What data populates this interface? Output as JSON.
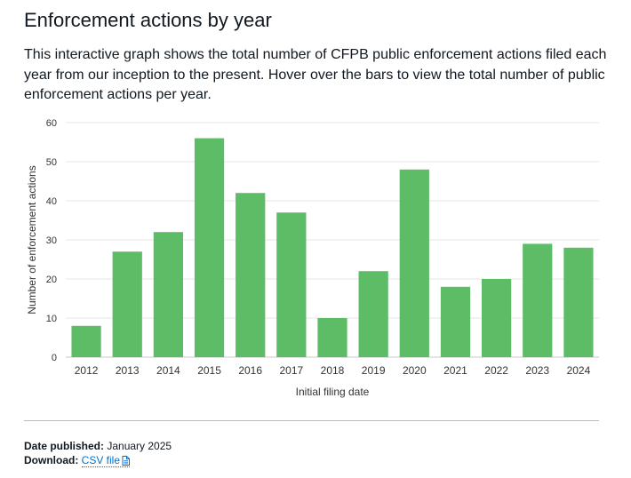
{
  "page": {
    "title": "Enforcement actions by year",
    "description": "This interactive graph shows the total number of CFPB public enforcement actions filed each year from our inception to the present. Hover over the bars to view the total number of public enforcement actions per year."
  },
  "meta": {
    "date_label": "Date published:",
    "date_value": "January 2025",
    "download_label": "Download:",
    "download_link": "CSV file",
    "download_icon": "document-icon"
  },
  "colors": {
    "bar": "#5cbd66",
    "grid": "#e6e6e6",
    "axis_text": "#333333",
    "link": "#0072ce"
  },
  "chart_data": {
    "type": "bar",
    "title": "",
    "xlabel": "Initial filing date",
    "ylabel": "Number of enforcement actions",
    "categories": [
      "2012",
      "2013",
      "2014",
      "2015",
      "2016",
      "2017",
      "2018",
      "2019",
      "2020",
      "2021",
      "2022",
      "2023",
      "2024"
    ],
    "values": [
      8,
      27,
      32,
      56,
      42,
      37,
      10,
      22,
      48,
      18,
      20,
      29,
      28
    ],
    "ylim": [
      0,
      60
    ],
    "yticks": [
      0,
      10,
      20,
      30,
      40,
      50,
      60
    ],
    "grid": true,
    "legend": "none"
  }
}
